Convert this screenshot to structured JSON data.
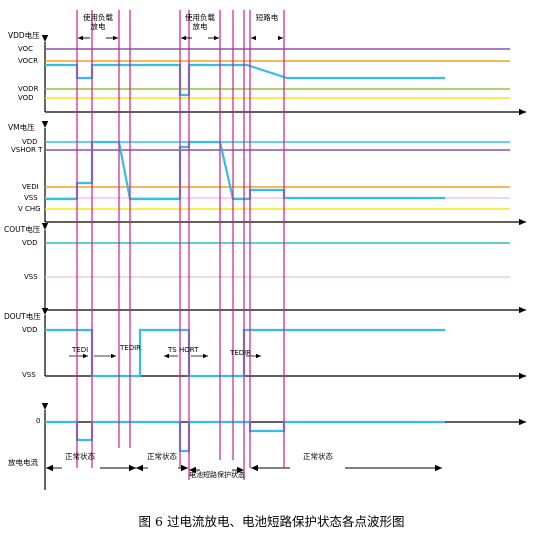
{
  "colors": {
    "signal": "#33bde8",
    "marker": "#cc1e8c",
    "thresh_voc": "#8b52a8",
    "thresh_vocr": "#f2a31e",
    "thresh_vodr": "#8dc63f",
    "thresh_vod": "#f5e514",
    "thresh_vdd": "#33bde8",
    "thresh_vshort": "#8b52a8",
    "thresh_vedi": "#f2a31e",
    "thresh_vss": "#f2c7e0",
    "thresh_vchg": "#f5e514",
    "cout_vdd": "#2dbfb0",
    "cout_vss": "#f2c7e0"
  },
  "headers": {
    "h1": "使用负载放电",
    "h2": "使用负载放电",
    "h3": "短路电"
  },
  "panels": {
    "vdd": {
      "title": "VDD电压",
      "labels": {
        "voc": "VOC",
        "vocr": "VOCR",
        "vodr": "VODR",
        "vod": "VOD"
      }
    },
    "vm": {
      "title": "VM电压",
      "labels": {
        "vdd": "VDD",
        "vshort": "VSHOR T",
        "vedi": "VEDI",
        "vss": "VSS",
        "vchg": "V CHG"
      }
    },
    "cout": {
      "title": "COUT电压",
      "labels": {
        "vdd": "VDD",
        "vss": "VSS"
      }
    },
    "dout": {
      "title": "DOUT电压",
      "labels": {
        "vdd": "VDD",
        "vss": "VSS"
      },
      "timers": {
        "tedi": "TEDI",
        "tedir1": "TEDIR",
        "tshort": "TS HORT",
        "tedir2": "TEDIR"
      }
    },
    "current": {
      "title": "放电电流",
      "zero": "0",
      "states": {
        "s1": "正常状态",
        "s2": "正常状态",
        "s3": "电池短路保护状态",
        "s4": "正常状态"
      }
    }
  },
  "caption": "图 6 过电流放电、电池短路保护状态各点波形图"
}
